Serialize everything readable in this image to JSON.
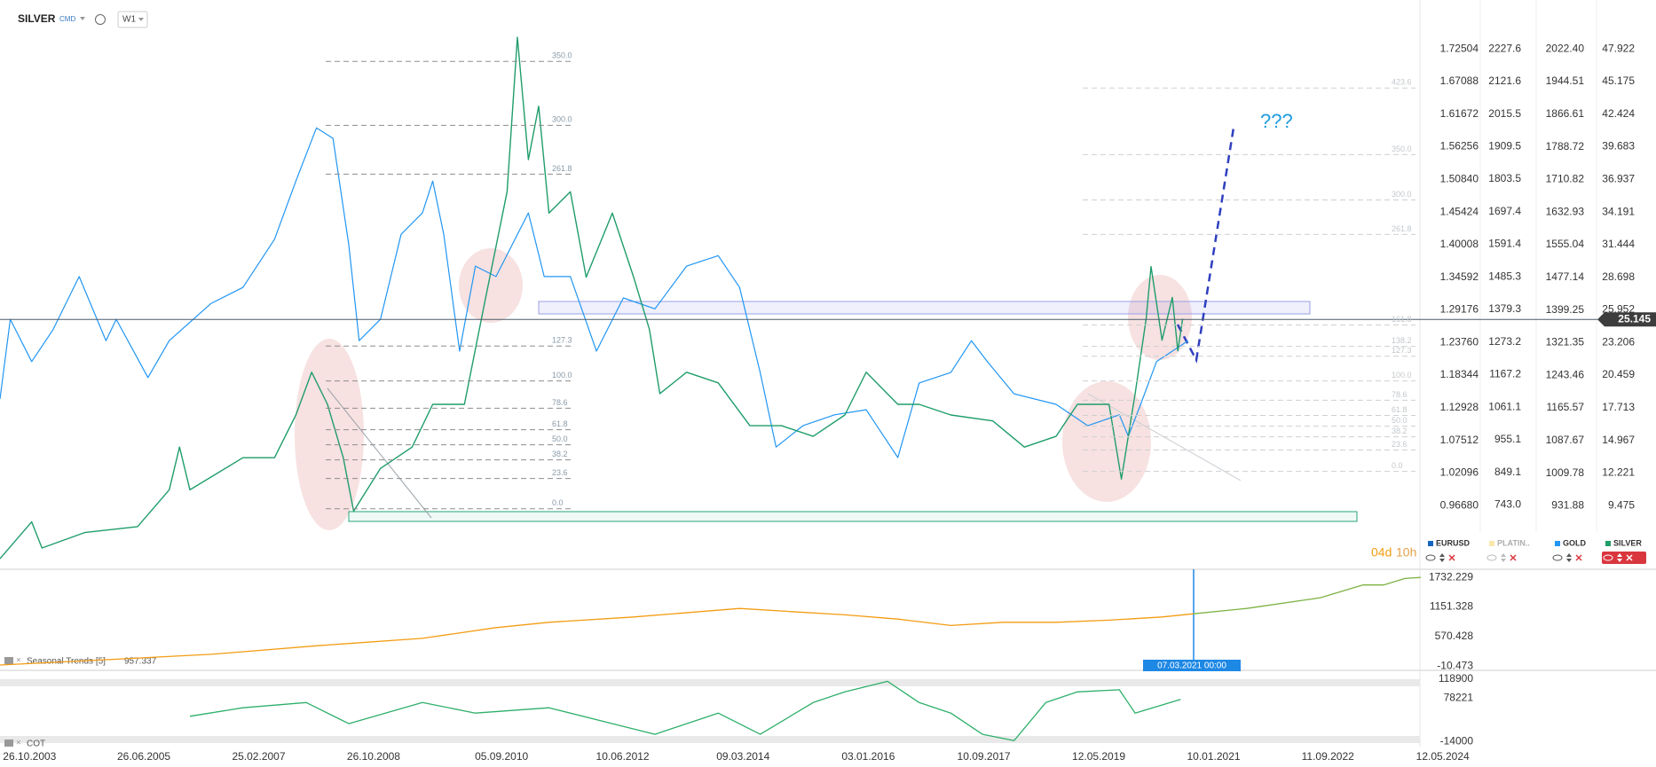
{
  "toolbar": {
    "symbol": "SILVER",
    "source": "CMD",
    "interval": "W1"
  },
  "chart_data": [
    {
      "type": "line",
      "xlim": [
        2003.39,
        2027.46
      ],
      "axes": [
        {
          "name": "EURUSD",
          "color": "#1565c0",
          "ylim": [
            0.861,
            1.771
          ],
          "yticks": [
            1.72504,
            1.67088,
            1.61672,
            1.56256,
            {
              "value": 1.5084,
              "label": "1.50840"
            },
            1.45424,
            1.40008,
            1.34592,
            1.29176,
            {
              "value": 1.2376,
              "label": "1.23760"
            },
            1.18344,
            1.12928,
            1.07512,
            1.02096,
            {
              "value": 0.9668,
              "label": "0.96680"
            }
          ]
        },
        {
          "name": "PLATIN..",
          "color": "#f2c230",
          "hidden": true,
          "ylim": [
            533.2,
            2317.7
          ],
          "yticks": [
            2227.6,
            2121.6,
            2015.5,
            1909.5,
            1803.5,
            1697.4,
            1591.4,
            1485.3,
            1379.3,
            1273.2,
            1167.2,
            1061.1,
            955.1,
            849.1,
            {
              "value": 743,
              "label": "743.0"
            }
          ]
        },
        {
          "name": "GOLD",
          "color": "#2196f3",
          "ylim": [
            780.3,
            2088.4
          ],
          "yticks": [
            {
              "value": 2022.4,
              "label": "2022.40"
            },
            1944.51,
            1866.61,
            1788.72,
            1710.82,
            1632.93,
            1555.04,
            1477.14,
            1399.25,
            1321.35,
            1243.46,
            1165.57,
            1087.67,
            1009.78,
            931.88
          ],
          "x": [
            2003.39,
            2003.54,
            2003.85,
            2004.16,
            2004.54,
            2004.93,
            2005.08,
            2005.54,
            2005.85,
            2006.46,
            2006.92,
            2007.38,
            2007.69,
            2007.99,
            2008.23,
            2008.46,
            2008.61,
            2008.92,
            2009.22,
            2009.53,
            2009.68,
            2009.84,
            2010.07,
            2010.3,
            2010.6,
            2011.07,
            2011.3,
            2011.68,
            2012.06,
            2012.45,
            2012.91,
            2013.37,
            2013.83,
            2014.14,
            2014.44,
            2014.67,
            2015.06,
            2015.52,
            2015.98,
            2016.44,
            2016.75,
            2017.21,
            2017.51,
            2017.74,
            2018.13,
            2018.74,
            2019.2,
            2019.66,
            2019.79,
            2019.97,
            2020.2,
            2020.43,
            2020.66
          ],
          "values": [
            1187,
            1377,
            1276,
            1352,
            1479,
            1326,
            1377,
            1238,
            1326,
            1415,
            1453,
            1568,
            1707,
            1834,
            1809,
            1555,
            1326,
            1377,
            1580,
            1631,
            1707,
            1580,
            1301,
            1504,
            1479,
            1631,
            1479,
            1479,
            1301,
            1428,
            1402,
            1504,
            1529,
            1453,
            1250,
            1072,
            1123,
            1149,
            1161,
            1047,
            1225,
            1250,
            1326,
            1276,
            1199,
            1174,
            1123,
            1149,
            1098,
            1174,
            1276,
            1301,
            1326
          ]
        },
        {
          "name": "SILVER",
          "color": "#1f9d6b",
          "ylim": [
            4.11,
            50.25
          ],
          "last_price": 25.145,
          "yticks": [
            47.922,
            45.175,
            42.424,
            39.683,
            36.937,
            34.191,
            31.444,
            28.698,
            25.952,
            23.206,
            20.459,
            17.713,
            14.967,
            12.221,
            9.475
          ],
          "x": [
            2003.39,
            2003.85,
            2004.0,
            2004.62,
            2005.39,
            2005.85,
            2006.0,
            2006.15,
            2006.92,
            2007.38,
            2007.69,
            2007.92,
            2008.15,
            2008.38,
            2008.53,
            2008.92,
            2009.38,
            2009.68,
            2010.14,
            2010.45,
            2010.76,
            2010.91,
            2011.07,
            2011.22,
            2011.37,
            2011.68,
            2011.91,
            2012.29,
            2012.6,
            2012.83,
            2012.98,
            2013.37,
            2013.83,
            2014.29,
            2014.75,
            2015.21,
            2015.67,
            2015.98,
            2016.44,
            2016.75,
            2017.21,
            2017.82,
            2018.28,
            2018.74,
            2019.05,
            2019.51,
            2019.69,
            2019.89,
            2020.05,
            2020.12,
            2020.28,
            2020.43,
            2020.51,
            2020.58
          ],
          "values": [
            5.0,
            8.1,
            5.9,
            7.2,
            7.7,
            10.8,
            14.4,
            10.8,
            13.5,
            13.5,
            17.1,
            20.7,
            18.0,
            13.5,
            9.0,
            12.6,
            14.4,
            18.0,
            18.0,
            27.0,
            35.9,
            48.9,
            38.6,
            43.1,
            34.1,
            35.9,
            28.7,
            34.1,
            28.7,
            24.3,
            18.9,
            20.7,
            19.8,
            16.2,
            16.2,
            15.3,
            17.1,
            20.7,
            18.0,
            18.0,
            17.1,
            16.6,
            14.4,
            15.3,
            18.0,
            18.0,
            11.7,
            18.9,
            25.2,
            29.6,
            23.4,
            27.0,
            22.5,
            25.2
          ]
        }
      ],
      "fib": [
        {
          "from": 9.21,
          "to": 19.97,
          "levels": [
            {
              "value": 350,
              "label": "350.0"
            },
            {
              "value": 300,
              "label": "300.0"
            },
            261.8,
            127.3,
            {
              "value": 100,
              "label": "100.0"
            },
            78.6,
            61.8,
            {
              "value": 50,
              "label": "50.0"
            },
            38.2,
            23.6,
            {
              "value": 0,
              "label": "0.0"
            }
          ]
        },
        {
          "from": 12.35,
          "to": 19.97,
          "levels": [
            423.6,
            {
              "value": 350,
              "label": "350.0"
            },
            {
              "value": 300,
              "label": "300.0"
            },
            261.8,
            161.8,
            138.2,
            127.3,
            {
              "value": 100,
              "label": "100.0"
            },
            78.6,
            61.8,
            {
              "value": 50,
              "label": "50.0"
            },
            38.2,
            23.6,
            {
              "value": 0,
              "label": "0.0"
            }
          ]
        }
      ],
      "annotation": "???",
      "countdown": {
        "days": "04d",
        "hours": "10h"
      }
    },
    {
      "type": "line",
      "title": "Seasonal  Trends [5]",
      "last_value": 957.337,
      "crosshair_label": "07.03.2021 00:00",
      "xlim": [
        2003.39,
        2027.46
      ],
      "ylim": [
        -95,
        1858
      ],
      "yticks": [
        1732.229,
        1151.328,
        570.428,
        -10.473
      ],
      "series": [
        {
          "color": "#f39c12",
          "x": [
            2003.39,
            2004.93,
            2006.46,
            2007.99,
            2009.53,
            2010.6,
            2011.37,
            2012.6,
            2014.14,
            2014.9,
            2015.67,
            2016.44,
            2017.21,
            2017.97,
            2018.74,
            2019.51,
            2020.28,
            2020.74
          ],
          "values": [
            10,
            115,
            220,
            388,
            535,
            745,
            850,
            955,
            1123,
            1060,
            997,
            913,
            787,
            850,
            850,
            892,
            955,
            1018
          ]
        },
        {
          "color": "#7cb342",
          "x": [
            2020.74,
            2021.51,
            2022.58,
            2023.2,
            2023.5,
            2023.81,
            2024.04
          ],
          "values": [
            1018,
            1123,
            1333,
            1585,
            1585,
            1711,
            1732
          ]
        }
      ]
    },
    {
      "type": "line",
      "title": "COT",
      "xlim": [
        2003.39,
        2027.46
      ],
      "ylim": [
        -20724,
        118900
      ],
      "yticks": [
        118900,
        78221,
        -14000
      ],
      "series": [
        {
          "color": "#2eaf6a",
          "x": [
            2006.15,
            2006.92,
            2007.84,
            2008.46,
            2009.53,
            2010.3,
            2011.37,
            2012.29,
            2012.91,
            2013.83,
            2014.44,
            2015.21,
            2015.67,
            2016.29,
            2016.75,
            2017.21,
            2017.67,
            2018.13,
            2018.59,
            2019.05,
            2019.66,
            2019.89,
            2020.55
          ],
          "values": [
            40080,
            58096,
            69356,
            24316,
            69356,
            46836,
            58096,
            24316,
            1796,
            46836,
            1796,
            69356,
            91876,
            114396,
            69356,
            46836,
            1796,
            -11716,
            69356,
            91876,
            96396,
            46836,
            76112
          ]
        }
      ],
      "xticks": [
        {
          "value": 2003.82,
          "label": "26.10.2003"
        },
        {
          "value": 2005.48,
          "label": "26.06.2005"
        },
        {
          "value": 2007.15,
          "label": "25.02.2007"
        },
        {
          "value": 2008.82,
          "label": "26.10.2008"
        },
        {
          "value": 2010.68,
          "label": "05.09.2010"
        },
        {
          "value": 2012.44,
          "label": "10.06.2012"
        },
        {
          "value": 2014.19,
          "label": "09.03.2014"
        },
        {
          "value": 2016.01,
          "label": "03.01.2016"
        },
        {
          "value": 2017.69,
          "label": "10.09.2017"
        },
        {
          "value": 2019.36,
          "label": "12.05.2019"
        },
        {
          "value": 2021.03,
          "label": "10.01.2021"
        },
        {
          "value": 2022.69,
          "label": "11.09.2022"
        },
        {
          "value": 2024.36,
          "label": "12.05.2024"
        }
      ]
    }
  ]
}
